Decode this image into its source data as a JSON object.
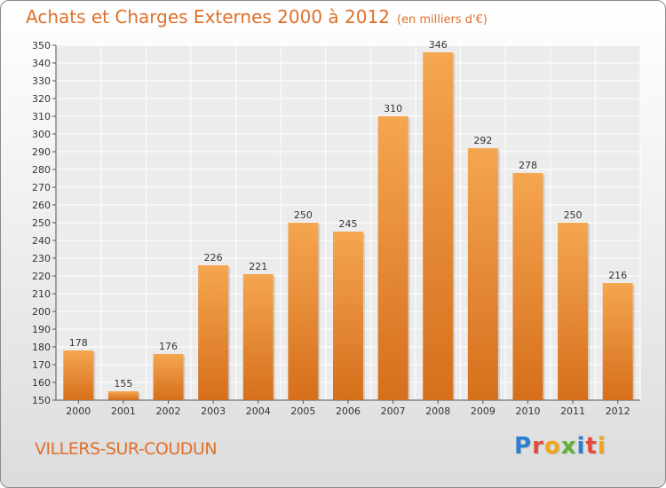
{
  "header": {
    "title": "Achats et Charges Externes 2000 à 2012",
    "subtitle": "(en milliers d'€)"
  },
  "footer": {
    "commune": "VILLERS-SUR-COUDUN",
    "brand": "Proxiti",
    "brand_colors": [
      "#2d7fd1",
      "#e24b3b",
      "#f2a51c",
      "#5fb336",
      "#2d7fd1",
      "#e24b3b",
      "#f2a51c"
    ]
  },
  "colors": {
    "bar": "#f0963f",
    "bar_dark": "#d9731f",
    "accent": "#e0702a"
  },
  "chart_data": {
    "type": "bar",
    "title": "Achats et Charges Externes 2000 à 2012",
    "subtitle": "(en milliers d'€)",
    "categories": [
      "2000",
      "2001",
      "2002",
      "2003",
      "2004",
      "2005",
      "2006",
      "2007",
      "2008",
      "2009",
      "2010",
      "2011",
      "2012"
    ],
    "values": [
      178,
      155,
      176,
      226,
      221,
      250,
      245,
      310,
      346,
      292,
      278,
      250,
      216
    ],
    "ylim": [
      150,
      350
    ],
    "yticks": [
      150,
      160,
      170,
      180,
      190,
      200,
      210,
      220,
      230,
      240,
      250,
      260,
      270,
      280,
      290,
      300,
      310,
      320,
      330,
      340,
      350
    ],
    "grid": true
  }
}
